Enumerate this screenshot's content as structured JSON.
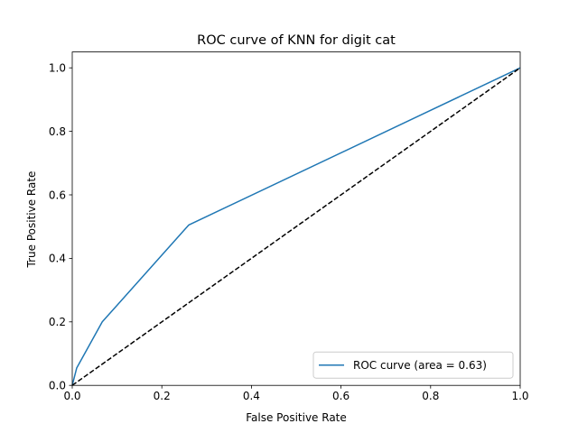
{
  "chart_data": {
    "type": "line",
    "title": "ROC curve of KNN for digit cat",
    "xlabel": "False Positive Rate",
    "ylabel": "True Positive Rate",
    "xlim": [
      0.0,
      1.0
    ],
    "ylim": [
      0.0,
      1.05
    ],
    "xticks": [
      0.0,
      0.2,
      0.4,
      0.6,
      0.8,
      1.0
    ],
    "xtick_labels": [
      "0.0",
      "0.2",
      "0.4",
      "0.6",
      "0.8",
      "1.0"
    ],
    "yticks": [
      0.0,
      0.2,
      0.4,
      0.6,
      0.8,
      1.0
    ],
    "ytick_labels": [
      "0.0",
      "0.2",
      "0.4",
      "0.6",
      "0.8",
      "1.0"
    ],
    "grid": false,
    "legend_position": "lower-right",
    "series": [
      {
        "name": "ROC curve (area = 0.63)",
        "color": "#1f77b4",
        "style": "solid",
        "x": [
          0.0,
          0.01,
          0.067,
          0.26,
          1.0
        ],
        "y": [
          0.0,
          0.055,
          0.2,
          0.505,
          1.0
        ]
      },
      {
        "color": "#000000",
        "style": "dashed",
        "x": [
          0.0,
          1.0
        ],
        "y": [
          0.0,
          1.0
        ]
      }
    ]
  }
}
